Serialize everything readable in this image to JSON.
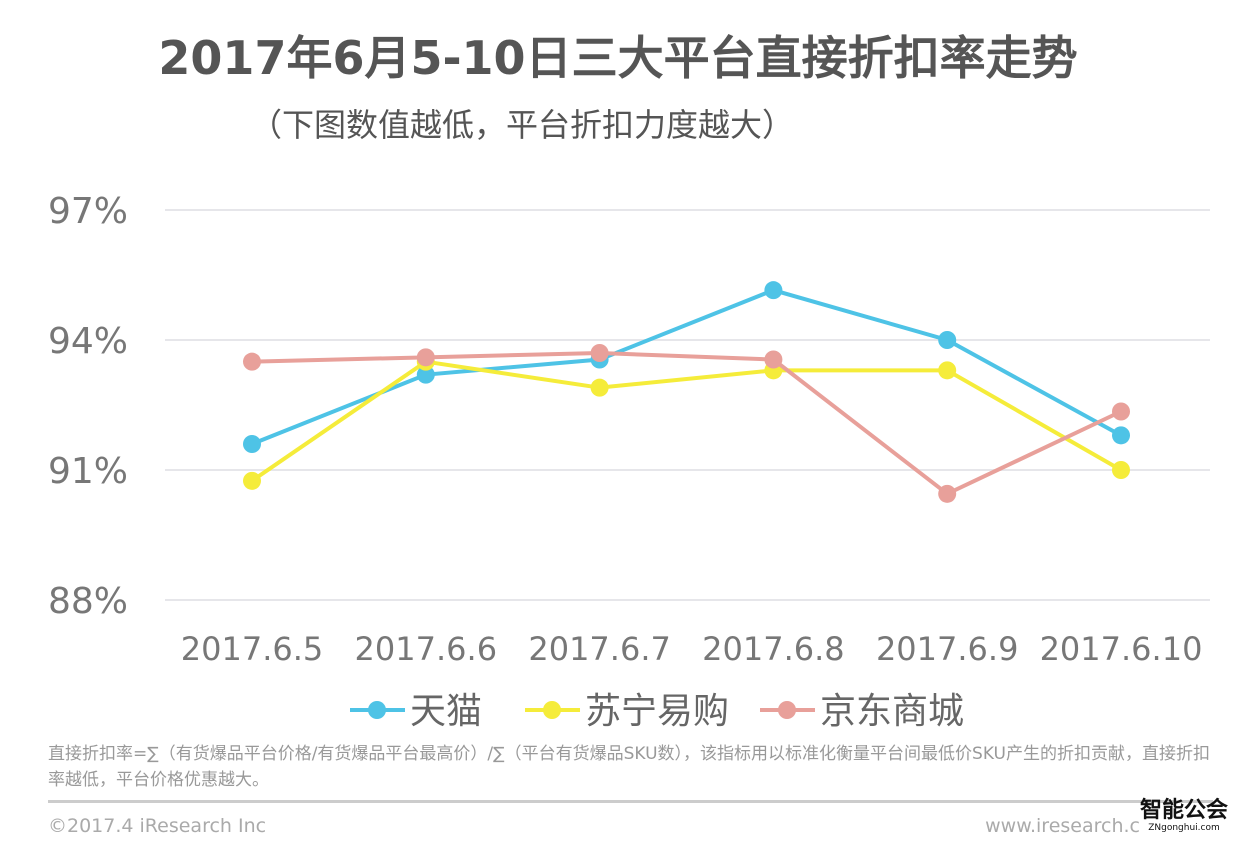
{
  "title": "2017年6月5-10日三大平台直接折扣率走势",
  "subtitle": "（下图数值越低，平台折扣力度越大）",
  "chart_data": {
    "type": "line",
    "title": "2017年6月5-10日三大平台直接折扣率走势",
    "categories": [
      "2017.6.5",
      "2017.6.6",
      "2017.6.7",
      "2017.6.8",
      "2017.6.9",
      "2017.6.10"
    ],
    "ylim": [
      88,
      97
    ],
    "yticks": [
      88,
      91,
      94,
      97
    ],
    "ytick_labels": [
      "88%",
      "91%",
      "94%",
      "97%"
    ],
    "grid": true,
    "legend": "bottom",
    "series": [
      {
        "name": "天猫",
        "color": "#4ec3e6",
        "values": [
          91.6,
          93.2,
          93.55,
          95.15,
          94.0,
          91.8
        ]
      },
      {
        "name": "苏宁易购",
        "color": "#f5ec3a",
        "values": [
          90.75,
          93.5,
          92.9,
          93.3,
          93.3,
          91.0
        ]
      },
      {
        "name": "京东商城",
        "color": "#e8a09a",
        "values": [
          93.5,
          93.6,
          93.7,
          93.55,
          90.45,
          92.35
        ]
      }
    ]
  },
  "footnote": "直接折扣率=∑（有货爆品平台价格/有货爆品平台最高价）/∑（平台有货爆品SKU数），该指标用以标准化衡量平台间最低价SKU产生的折扣贡献，直接折扣率越低，平台价格优惠越大。",
  "copyright": "©2017.4 iResearch Inc",
  "website": "www.iresearch.c",
  "watermark": {
    "main": "智能公会",
    "sub": "ZNgonghui.com"
  }
}
